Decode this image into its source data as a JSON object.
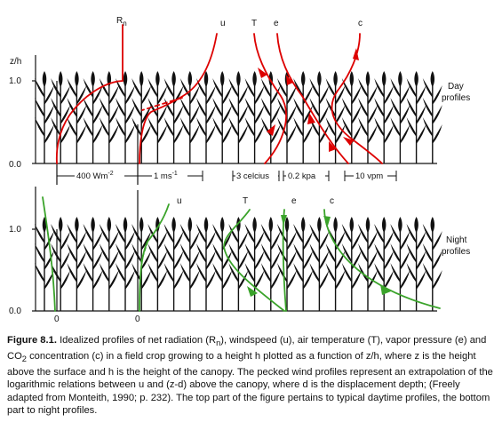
{
  "axes": {
    "ylabel": "z/h",
    "day_ticks": [
      "1.0",
      "0.0"
    ],
    "night_ticks": [
      "1.0",
      "0.0"
    ],
    "zero_labels": [
      "0",
      "0"
    ]
  },
  "labels": {
    "day": [
      "Day",
      "profiles"
    ],
    "night": [
      "Night",
      "profiles"
    ]
  },
  "day_curve_labels": {
    "rn_main": "R",
    "rn_sub": "n",
    "u": "u",
    "T": "T",
    "e": "e",
    "c": "c"
  },
  "night_curve_labels": {
    "u": "u",
    "T": "T",
    "e": "e",
    "c": "c"
  },
  "scales": {
    "radiation_main": "400 Wm",
    "radiation_sup": "-2",
    "wind_main": "1 ms",
    "wind_sup": "-1",
    "temp": "3 celcius",
    "vapor": "0.2 kpa",
    "co2": "10 vpm"
  },
  "colors": {
    "day": "#dd0000",
    "night": "#3aa32a",
    "plants": "#111111"
  },
  "caption": {
    "figure_label": "Figure 8.1.",
    "seg1": " Idealized profiles of net radiation (R",
    "seg1_sub": "n",
    "seg2": "), windspeed (u), air temperature (T), vapor pressure (e) and CO",
    "seg2_sub": "2",
    "seg3": " concentration (c) in a field crop growing to a height h plotted as a function of z/h, where z is the height above the surface and h is the height of the canopy. The pecked wind profiles represent an extrapolation of the logarithmic relations between u and (z-d) above the canopy, where d is the displacement depth; (Freely adapted from Monteith, 1990; p. 232). The top part of the figure pertains to typical daytime profiles, the bottom part to night profiles."
  }
}
